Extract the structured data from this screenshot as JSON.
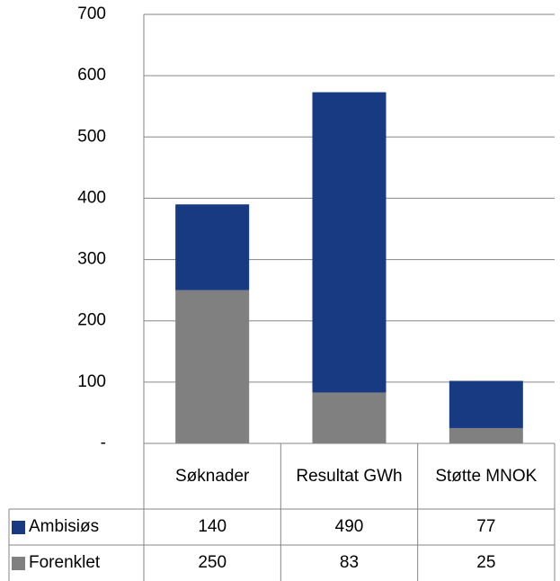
{
  "chart_data": {
    "type": "stacked_bar",
    "categories": [
      "Søknader",
      "Resultat GWh",
      "Støtte MNOK"
    ],
    "series": [
      {
        "name": "Forenklet",
        "color": "#808080",
        "values": [
          250,
          83,
          25
        ]
      },
      {
        "name": "Ambisiøs",
        "color": "#173a82",
        "values": [
          140,
          490,
          77
        ]
      }
    ],
    "ylim": [
      0,
      700
    ],
    "yticks": [
      {
        "value": 0,
        "label": "-"
      },
      100,
      200,
      300,
      400,
      500,
      600,
      700
    ],
    "grid": true,
    "legend": "table"
  }
}
